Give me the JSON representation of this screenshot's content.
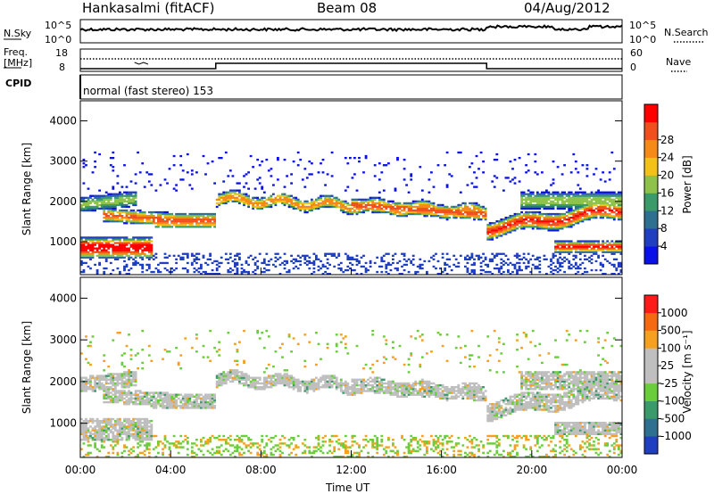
{
  "header": {
    "station": "Hankasalmi (fitACF)",
    "beam": "Beam 08",
    "date": "04/Aug/2012"
  },
  "noise_panel": {
    "left_label": "N.Sky",
    "right_label": "N.Search",
    "left_ticks": [
      "10^5",
      "10^0"
    ],
    "right_ticks": [
      "10^5",
      "10^0"
    ]
  },
  "freq_panel": {
    "left_label_line1": "Freq.",
    "left_label_line2": "[MHz]",
    "right_label": "Nave",
    "left_ticks": [
      "18",
      "8"
    ],
    "right_ticks": [
      "60",
      "0"
    ]
  },
  "cpid": {
    "label": "CPID",
    "value": "normal (fast stereo) 153"
  },
  "colors": {
    "power_scale": [
      "#0a10e8",
      "#1f3fc0",
      "#2f6f8f",
      "#3a9a6a",
      "#8fc24a",
      "#f2c21a",
      "#f58a18",
      "#f0501e",
      "#ff0000"
    ],
    "velocity_scale": [
      "#1f3fc0",
      "#2f6f8f",
      "#3a9a6a",
      "#6acd3c",
      "#bfbfbf",
      "#bfbfbf",
      "#f5a020",
      "#f56a10",
      "#ff1a1a"
    ]
  },
  "chart_data": [
    {
      "type": "heatmap",
      "name": "power",
      "ylabel": "Slant Range [km]",
      "ylim": [
        180,
        4500
      ],
      "xlim": [
        0,
        24
      ],
      "yticks": [
        "1000",
        "2000",
        "3000",
        "4000"
      ],
      "colorbar": {
        "label": "Power [dB]",
        "ticks": [
          "4",
          "8",
          "12",
          "16",
          "20",
          "24",
          "28"
        ]
      }
    },
    {
      "type": "heatmap",
      "name": "velocity",
      "ylabel": "Slant Range [km]",
      "ylim": [
        180,
        4500
      ],
      "xlim": [
        0,
        24
      ],
      "yticks": [
        "1000",
        "2000",
        "3000",
        "4000"
      ],
      "xticks": [
        "00:00",
        "04:00",
        "08:00",
        "12:00",
        "16:00",
        "20:00",
        "00:00"
      ],
      "xlabel": "Time UT",
      "colorbar": {
        "label": "Velocity [m s⁻¹]",
        "ticks": [
          "1000",
          "500",
          "100",
          "25",
          "-25",
          "-100",
          "-500",
          "-1000"
        ]
      }
    }
  ]
}
